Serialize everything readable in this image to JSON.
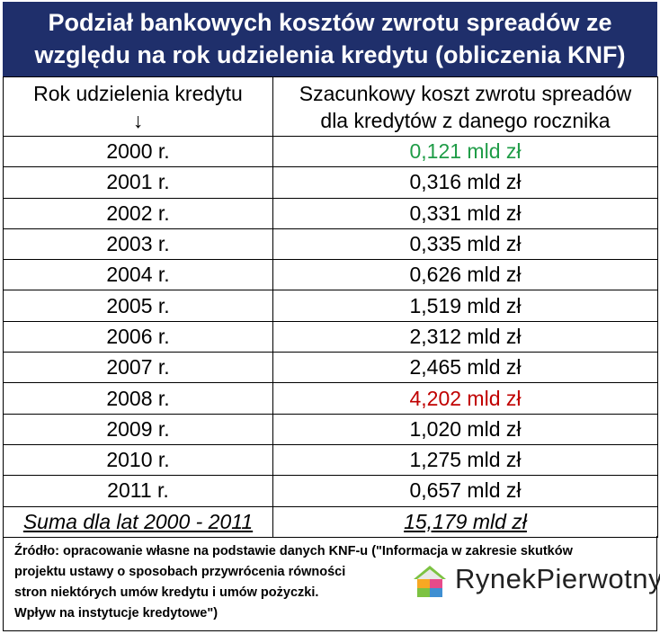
{
  "title": {
    "line1": "Podział bankowych kosztów zwrotu spreadów ze",
    "line2": "względu na rok udzielenia kredytu (obliczenia KNF)"
  },
  "table": {
    "header": {
      "col1_line1": "Rok udzielenia kredytu",
      "col1_arrow": "↓",
      "col2_line1": "Szacunkowy koszt zwrotu spreadów",
      "col2_line2": "dla kredytów z danego rocznika"
    },
    "rows": [
      {
        "year": "2000 r.",
        "cost": "0,121 mld zł"
      },
      {
        "year": "2001 r.",
        "cost": "0,316 mld zł"
      },
      {
        "year": "2002 r.",
        "cost": "0,331 mld zł"
      },
      {
        "year": "2003 r.",
        "cost": "0,335 mld zł"
      },
      {
        "year": "2004 r.",
        "cost": "0,626 mld zł"
      },
      {
        "year": "2005 r.",
        "cost": "1,519 mld zł"
      },
      {
        "year": "2006 r.",
        "cost": "2,312 mld zł"
      },
      {
        "year": "2007 r.",
        "cost": "2,465 mld zł"
      },
      {
        "year": "2008 r.",
        "cost": "4,202 mld zł"
      },
      {
        "year": "2009 r.",
        "cost": "1,020 mld zł"
      },
      {
        "year": "2010 r.",
        "cost": "1,275 mld zł"
      },
      {
        "year": "2011 r.",
        "cost": "0,657 mld zł"
      }
    ],
    "sum": {
      "label": "Suma dla lat 2000 - 2011",
      "value": "15,179 mld zł"
    }
  },
  "colors": {
    "title_bg": "#1f2f6b",
    "lowest_value": "#1f9c47",
    "highest_value": "#c00000"
  },
  "source": {
    "line1": "Źródło: opracowanie własne na podstawie danych KNF-u (\"Informacja w zakresie skutków",
    "line2": "projektu ustawy o sposobach przywrócenia równości",
    "line3": "stron niektórych umów kredytu i umów pożyczki.",
    "line4": "Wpływ na instytucje kredytowe\")"
  },
  "logo": {
    "icon": "house-logo-icon",
    "text": "RynekPierwotny"
  }
}
